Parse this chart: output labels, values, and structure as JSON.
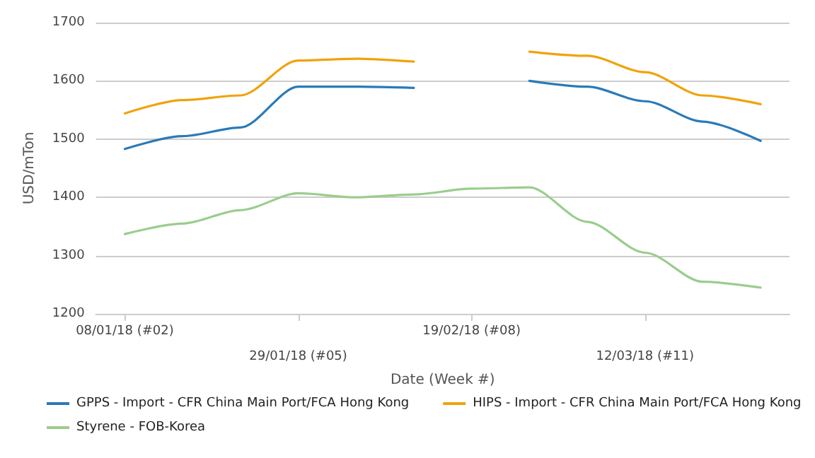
{
  "chart_data": {
    "type": "line",
    "xlabel": "Date (Week #)",
    "ylabel": "USD/mTon",
    "categories": [
      "08/01/18 (#02)",
      null,
      null,
      "29/01/18 (#05)",
      null,
      null,
      "19/02/18 (#08)",
      null,
      null,
      "12/03/18 (#11)",
      null,
      null
    ],
    "series": [
      {
        "name": "GPPS - Import - CFR China Main Port/FCA Hong Kong",
        "color": "#2a7ab8",
        "values": [
          1483,
          1505,
          1520,
          1590,
          1590,
          1588,
          null,
          1600,
          1590,
          1565,
          1530,
          1497
        ]
      },
      {
        "name": "HIPS - Import - CFR China Main Port/FCA Hong Kong",
        "color": "#f0a30a",
        "values": [
          1544,
          1567,
          1575,
          1635,
          1638,
          1633,
          null,
          1650,
          1643,
          1615,
          1575,
          1560
        ]
      },
      {
        "name": "Styrene - FOB-Korea",
        "color": "#9acd8e",
        "values": [
          1337,
          1355,
          1378,
          1407,
          1400,
          1405,
          1415,
          1417,
          1358,
          1305,
          1255,
          1245
        ]
      }
    ],
    "ylim": [
      1200,
      1700
    ],
    "yticks": [
      1200,
      1300,
      1400,
      1500,
      1600,
      1700
    ],
    "grid": "y",
    "legend": "bottom",
    "marker": "none",
    "line_style": "solid"
  }
}
